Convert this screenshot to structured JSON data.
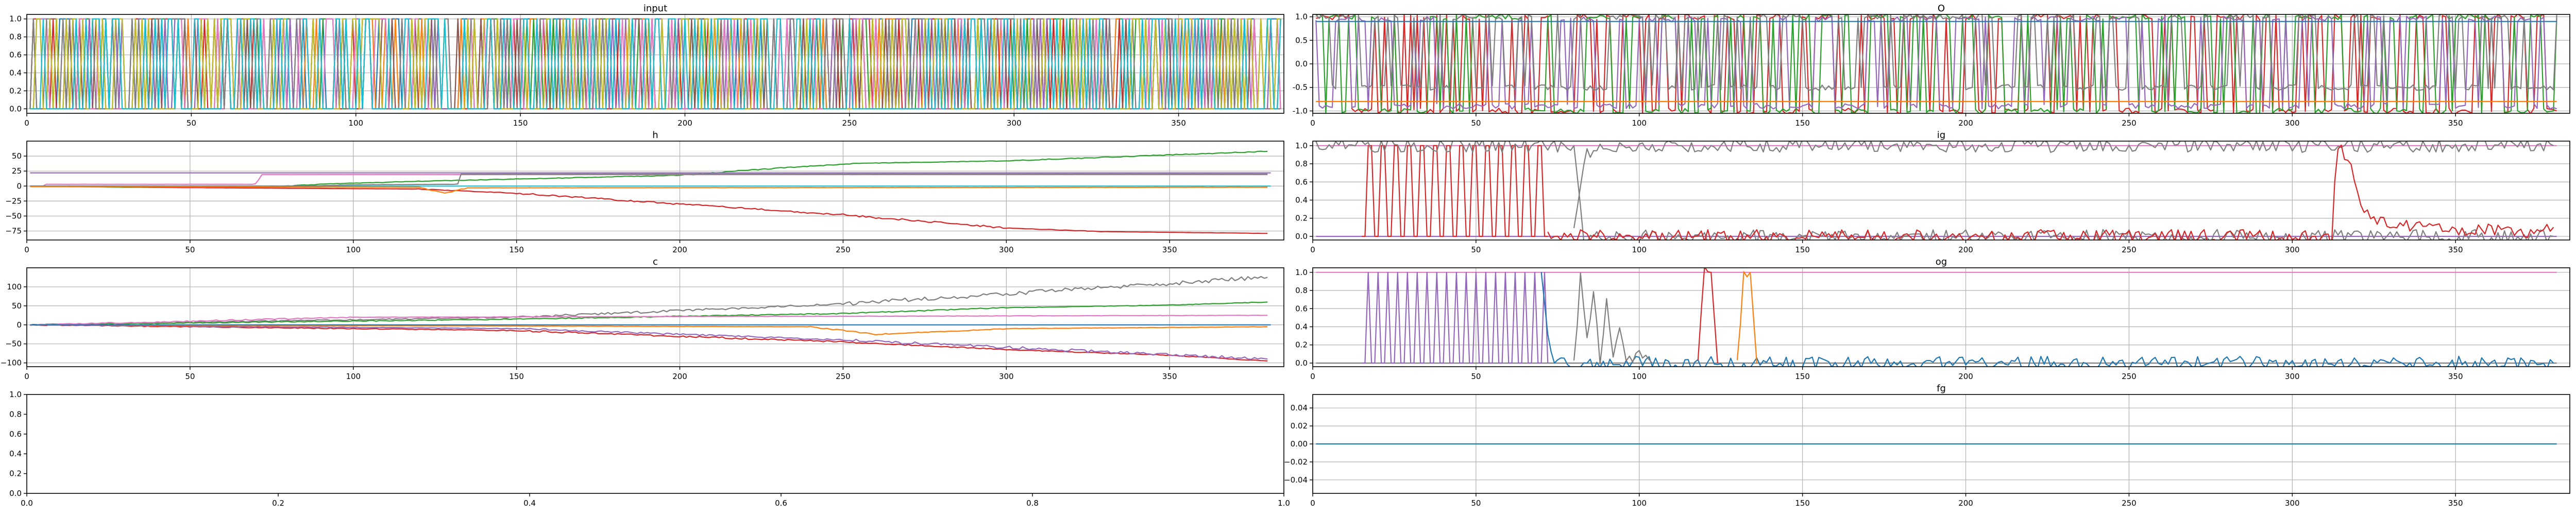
{
  "colors": [
    "#1f77b4",
    "#ff7f0e",
    "#2ca02c",
    "#d62728",
    "#9467bd",
    "#8c564b",
    "#e377c2",
    "#7f7f7f",
    "#bcbd22",
    "#17becf"
  ],
  "chart_data": [
    {
      "id": "input",
      "type": "line",
      "title": "input",
      "xlim": [
        0,
        382
      ],
      "ylim": [
        -0.05,
        1.05
      ],
      "xticks": [
        0,
        50,
        100,
        150,
        200,
        250,
        300,
        350
      ],
      "yticks": [
        0.0,
        0.2,
        0.4,
        0.6,
        0.8,
        1.0
      ],
      "ytick_labels": [
        "0.0",
        "0.2",
        "0.4",
        "0.6",
        "0.8",
        "1.0"
      ],
      "grid": true,
      "n_points": 381,
      "x_start": 1,
      "series": [
        {
          "color_index": 0,
          "gen": "binary",
          "p": 0.35
        },
        {
          "color_index": 1,
          "gen": "binary",
          "p": 0.35
        },
        {
          "color_index": 2,
          "gen": "binary",
          "p": 0.35
        },
        {
          "color_index": 3,
          "gen": "binary",
          "p": 0.35
        },
        {
          "color_index": 4,
          "gen": "binary",
          "p": 0.35
        },
        {
          "color_index": 5,
          "gen": "binary",
          "p": 0.35
        },
        {
          "color_index": 6,
          "gen": "binary",
          "p": 0.35
        },
        {
          "color_index": 7,
          "gen": "binary",
          "p": 0.35
        },
        {
          "color_index": 8,
          "gen": "binary",
          "p": 0.35
        },
        {
          "color_index": 9,
          "gen": "binary",
          "p": 0.35
        }
      ]
    },
    {
      "id": "O",
      "type": "line",
      "title": "O",
      "xlim": [
        0,
        385
      ],
      "ylim": [
        -1.05,
        1.05
      ],
      "xticks": [
        0,
        50,
        100,
        150,
        200,
        250,
        300,
        350
      ],
      "yticks": [
        -1.0,
        -0.5,
        0.0,
        0.5,
        1.0
      ],
      "ytick_labels": [
        "-1.0",
        "-0.5",
        "0.0",
        "0.5",
        "1.0"
      ],
      "grid": true,
      "n_points": 381,
      "x_start": 1,
      "series": [
        {
          "color_index": 3,
          "gen": "switch",
          "p": 0.35,
          "levels": [
            -1,
            1
          ]
        },
        {
          "color_index": 2,
          "gen": "switch",
          "p": 0.35,
          "levels": [
            -1,
            1
          ]
        },
        {
          "color_index": 4,
          "gen": "switch",
          "p": 0.3,
          "levels": [
            -0.9,
            0.95
          ]
        },
        {
          "color_index": 7,
          "gen": "switch",
          "p": 0.3,
          "levels": [
            -0.5,
            1
          ]
        },
        {
          "color_index": 1,
          "gen": "const",
          "value": -0.8
        },
        {
          "color_index": 0,
          "gen": "const",
          "value": 0.9
        }
      ]
    },
    {
      "id": "h",
      "type": "line",
      "title": "h",
      "xlim": [
        0,
        385
      ],
      "ylim": [
        -90,
        75
      ],
      "xticks": [
        0,
        50,
        100,
        150,
        200,
        250,
        300,
        350
      ],
      "yticks": [
        -75,
        -50,
        -25,
        0,
        25,
        50
      ],
      "ytick_labels": [
        "−75",
        "−50",
        "−25",
        "0",
        "25",
        "50"
      ],
      "grid": true,
      "n_points": 381,
      "x_start": 1,
      "series": [
        {
          "color_index": 2,
          "gen": "path",
          "pts": [
            [
              1,
              0
            ],
            [
              30,
              -2
            ],
            [
              70,
              -3
            ],
            [
              90,
              3
            ],
            [
              120,
              8
            ],
            [
              160,
              13
            ],
            [
              200,
              18
            ],
            [
              230,
              30
            ],
            [
              255,
              38
            ],
            [
              300,
              42
            ],
            [
              340,
              50
            ],
            [
              380,
              58
            ]
          ]
        },
        {
          "color_index": 3,
          "gen": "path",
          "pts": [
            [
              1,
              0
            ],
            [
              60,
              -3
            ],
            [
              120,
              -5
            ],
            [
              150,
              -12
            ],
            [
              200,
              -30
            ],
            [
              250,
              -48
            ],
            [
              300,
              -70
            ],
            [
              330,
              -76
            ],
            [
              380,
              -79
            ]
          ]
        },
        {
          "color_index": 6,
          "gen": "path",
          "pts": [
            [
              1,
              0
            ],
            [
              5,
              0
            ],
            [
              6,
              3
            ],
            [
              70,
              3
            ],
            [
              72,
              19
            ],
            [
              380,
              19
            ]
          ]
        },
        {
          "color_index": 9,
          "gen": "const",
          "value": 0
        },
        {
          "color_index": 4,
          "gen": "const",
          "value": 22
        },
        {
          "color_index": 7,
          "gen": "path",
          "pts": [
            [
              1,
              0
            ],
            [
              85,
              0
            ],
            [
              100,
              2
            ],
            [
              132,
              3
            ],
            [
              133,
              20
            ],
            [
              380,
              20
            ]
          ]
        },
        {
          "color_index": 1,
          "gen": "path",
          "pts": [
            [
              1,
              -1
            ],
            [
              120,
              -2
            ],
            [
              128,
              -12
            ],
            [
              135,
              -3
            ],
            [
              380,
              -2
            ]
          ]
        }
      ]
    },
    {
      "id": "ig",
      "type": "line",
      "title": "ig",
      "xlim": [
        0,
        385
      ],
      "ylim": [
        -0.04,
        1.05
      ],
      "xticks": [
        0,
        50,
        100,
        150,
        200,
        250,
        300,
        350
      ],
      "yticks": [
        0.0,
        0.2,
        0.4,
        0.6,
        0.8,
        1.0
      ],
      "ytick_labels": [
        "0.0",
        "0.2",
        "0.4",
        "0.6",
        "0.8",
        "1.0"
      ],
      "grid": true,
      "n_points": 381,
      "x_start": 1,
      "series": [
        {
          "color_index": 4,
          "gen": "const",
          "value": 0.0
        },
        {
          "color_index": 6,
          "gen": "const",
          "value": 1.0
        },
        {
          "color_index": 3,
          "gen": "osc",
          "period": 4,
          "x_from": 15,
          "x_to": 72,
          "low": 0.0,
          "high": 1.0
        },
        {
          "color_index": 7,
          "gen": "path",
          "pts": [
            [
              1,
              1
            ],
            [
              80,
              1
            ],
            [
              83,
              0
            ],
            [
              380,
              0
            ]
          ]
        },
        {
          "color_index": 7,
          "gen": "path",
          "pts": [
            [
              80,
              0
            ],
            [
              84,
              0.9
            ],
            [
              86,
              1
            ],
            [
              380,
              1
            ]
          ]
        },
        {
          "color_index": 3,
          "gen": "path",
          "pts": [
            [
              72,
              0
            ],
            [
              312,
              0
            ],
            [
              314,
              1
            ],
            [
              318,
              0.8
            ],
            [
              320,
              0.5
            ],
            [
              322,
              0.3
            ],
            [
              326,
              0.15
            ],
            [
              340,
              0.1
            ],
            [
              370,
              0.05
            ],
            [
              380,
              0.1
            ]
          ]
        }
      ]
    },
    {
      "id": "c",
      "type": "line",
      "title": "c",
      "xlim": [
        0,
        385
      ],
      "ylim": [
        -110,
        150
      ],
      "xticks": [
        0,
        50,
        100,
        150,
        200,
        250,
        300,
        350
      ],
      "yticks": [
        -100,
        -50,
        0,
        50,
        100
      ],
      "ytick_labels": [
        "−100",
        "−50",
        "0",
        "50",
        "100"
      ],
      "grid": true,
      "n_points": 381,
      "x_start": 1,
      "series": [
        {
          "color_index": 7,
          "gen": "path",
          "pts": [
            [
              1,
              0
            ],
            [
              150,
              20
            ],
            [
              250,
              55
            ],
            [
              380,
              125
            ]
          ]
        },
        {
          "color_index": 2,
          "gen": "path",
          "pts": [
            [
              1,
              0
            ],
            [
              150,
              15
            ],
            [
              250,
              30
            ],
            [
              300,
              45
            ],
            [
              350,
              52
            ],
            [
              380,
              60
            ]
          ]
        },
        {
          "color_index": 6,
          "gen": "path",
          "pts": [
            [
              1,
              0
            ],
            [
              100,
              20
            ],
            [
              380,
              25
            ]
          ]
        },
        {
          "color_index": 3,
          "gen": "path",
          "pts": [
            [
              1,
              0
            ],
            [
              150,
              -15
            ],
            [
              250,
              -45
            ],
            [
              300,
              -65
            ],
            [
              350,
              -80
            ],
            [
              380,
              -95
            ]
          ]
        },
        {
          "color_index": 4,
          "gen": "path",
          "pts": [
            [
              1,
              0
            ],
            [
              150,
              -10
            ],
            [
              250,
              -40
            ],
            [
              380,
              -90
            ]
          ]
        },
        {
          "color_index": 1,
          "gen": "path",
          "pts": [
            [
              1,
              0
            ],
            [
              240,
              -5
            ],
            [
              260,
              -25
            ],
            [
              300,
              -10
            ],
            [
              380,
              -5
            ]
          ]
        },
        {
          "color_index": 0,
          "gen": "const",
          "value": 0
        }
      ]
    },
    {
      "id": "og",
      "type": "line",
      "title": "og",
      "xlim": [
        0,
        385
      ],
      "ylim": [
        -0.04,
        1.05
      ],
      "xticks": [
        0,
        50,
        100,
        150,
        200,
        250,
        300,
        350
      ],
      "yticks": [
        0.0,
        0.2,
        0.4,
        0.6,
        0.8,
        1.0
      ],
      "ytick_labels": [
        "0.0",
        "0.2",
        "0.4",
        "0.6",
        "0.8",
        "1.0"
      ],
      "grid": true,
      "n_points": 381,
      "x_start": 1,
      "series": [
        {
          "color_index": 6,
          "gen": "const",
          "value": 1.0
        },
        {
          "color_index": 7,
          "gen": "const",
          "value": 0.0
        },
        {
          "color_index": 4,
          "gen": "osc",
          "period": 3,
          "x_from": 15,
          "x_to": 72,
          "low": 0.0,
          "high": 1.0
        },
        {
          "color_index": 0,
          "gen": "path",
          "pts": [
            [
              70,
              1
            ],
            [
              72,
              0.3
            ],
            [
              74,
              0
            ],
            [
              380,
              0
            ]
          ]
        },
        {
          "color_index": 7,
          "gen": "path",
          "pts": [
            [
              80,
              0
            ],
            [
              82,
              1
            ],
            [
              84,
              0.2
            ],
            [
              86,
              0.8
            ],
            [
              88,
              0.1
            ],
            [
              90,
              0.7
            ],
            [
              92,
              0
            ],
            [
              94,
              0.4
            ],
            [
              96,
              0
            ],
            [
              100,
              0.1
            ],
            [
              104,
              0
            ]
          ]
        },
        {
          "color_index": 3,
          "gen": "path",
          "pts": [
            [
              118,
              0
            ],
            [
              120,
              1
            ],
            [
              122,
              1
            ],
            [
              124,
              0
            ]
          ]
        },
        {
          "color_index": 1,
          "gen": "path",
          "pts": [
            [
              130,
              0
            ],
            [
              132,
              1
            ],
            [
              134,
              1
            ],
            [
              136,
              0
            ]
          ]
        }
      ]
    },
    {
      "id": "empty",
      "type": "line",
      "title": "",
      "xlim": [
        0.0,
        1.0
      ],
      "ylim": [
        0.0,
        1.0
      ],
      "xticks": [
        0.0,
        0.2,
        0.4,
        0.6,
        0.8,
        1.0
      ],
      "xtick_labels": [
        "0.0",
        "0.2",
        "0.4",
        "0.6",
        "0.8",
        "1.0"
      ],
      "yticks": [
        0.0,
        0.2,
        0.4,
        0.6,
        0.8,
        1.0
      ],
      "ytick_labels": [
        "0.0",
        "0.2",
        "0.4",
        "0.6",
        "0.8",
        "1.0"
      ],
      "grid": false,
      "series": []
    },
    {
      "id": "fg",
      "type": "line",
      "title": "fg",
      "xlim": [
        0,
        385
      ],
      "ylim": [
        -0.055,
        0.055
      ],
      "xticks": [
        0,
        50,
        100,
        150,
        200,
        250,
        300,
        350
      ],
      "yticks": [
        -0.04,
        -0.02,
        0.0,
        0.02,
        0.04
      ],
      "ytick_labels": [
        "−0.04",
        "−0.02",
        "0.00",
        "0.02",
        "0.04"
      ],
      "grid": true,
      "n_points": 381,
      "x_start": 1,
      "series": [
        {
          "color_index": 0,
          "gen": "const",
          "value": 0.0
        }
      ]
    }
  ]
}
